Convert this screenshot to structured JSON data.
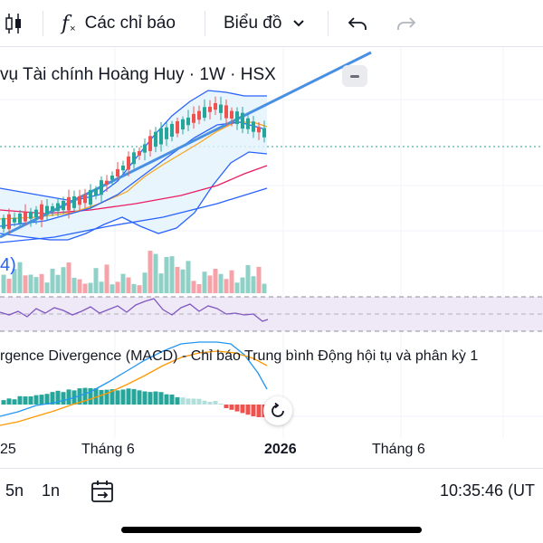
{
  "toolbar": {
    "indicators_label": "Các chỉ báo",
    "chart_type_label": "Biểu đồ"
  },
  "chart": {
    "title": "vụ Tài chính Hoàng Huy · 1W · HSX",
    "volume_label": "4)",
    "macd_title": "rgence Divergence (MACD) - Chỉ báo Trung bình Động hội tụ và phân kỳ 1",
    "colors": {
      "up": "#26a69a",
      "down": "#ef5350",
      "vol_up": "#8fd1c7",
      "vol_down": "#f5a3a8",
      "trend": "#4a90e2",
      "bb": "#2962ff",
      "ma_yellow": "#f5a623",
      "ma_red": "#e91e63",
      "rsi_line": "#7e57c2",
      "rsi_band": "#ede7f6",
      "macd_line": "#2196f3",
      "signal_line": "#ff9800"
    }
  },
  "time_axis": {
    "labels": [
      "25",
      "Tháng 6",
      "2026",
      "Tháng 6"
    ]
  },
  "bottom_bar": {
    "interval_5n": "5n",
    "interval_1n": "1n",
    "clock": "10:35:46 (UT"
  }
}
